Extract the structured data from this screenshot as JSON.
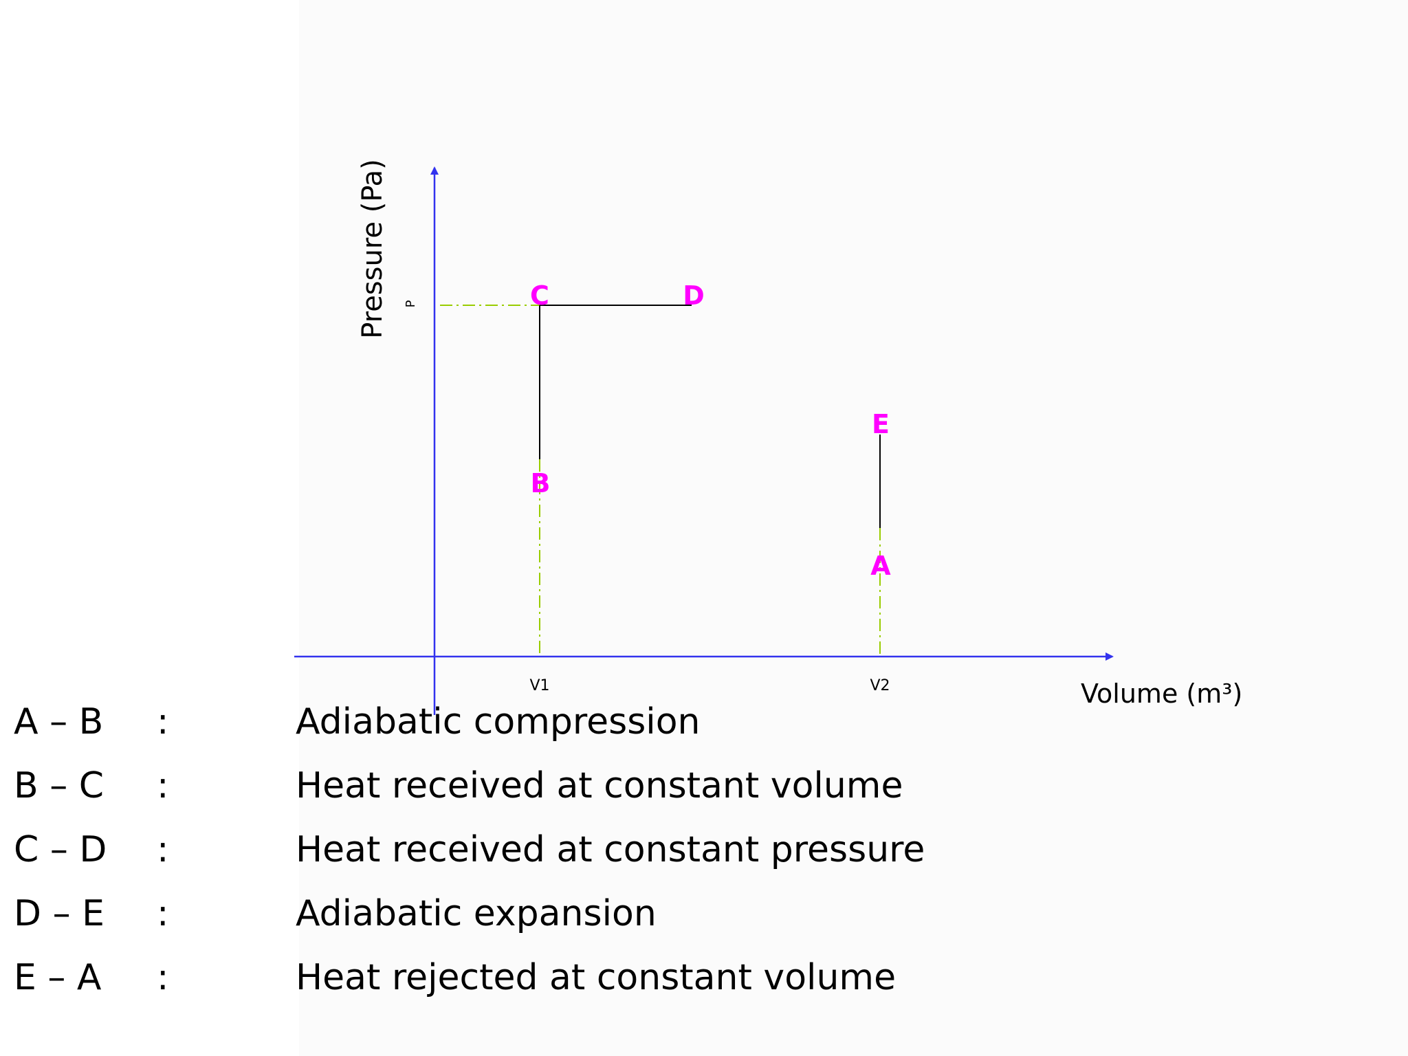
{
  "diagram": {
    "y_axis_label": "Pressure (Pa)",
    "x_axis_label": "Volume (m³)",
    "pressure_tick": "P",
    "volume_ticks": [
      "V1",
      "V2"
    ],
    "points": {
      "A": "A",
      "B": "B",
      "C": "C",
      "D": "D",
      "E": "E"
    },
    "colors": {
      "axis": "#3333ee",
      "point_label": "#ff00ff",
      "process_line": "#000000",
      "guide_line": "#99cc00"
    }
  },
  "legend": [
    {
      "step": "A – B",
      "colon": ":",
      "desc": "Adiabatic compression"
    },
    {
      "step": "B – C",
      "colon": ":",
      "desc": "Heat received at constant volume"
    },
    {
      "step": "C – D",
      "colon": ":",
      "desc": "Heat received at constant pressure"
    },
    {
      "step": "D – E",
      "colon": ":",
      "desc": "Adiabatic expansion"
    },
    {
      "step": "E – A",
      "colon": ":",
      "desc": "Heat rejected at constant volume"
    }
  ]
}
